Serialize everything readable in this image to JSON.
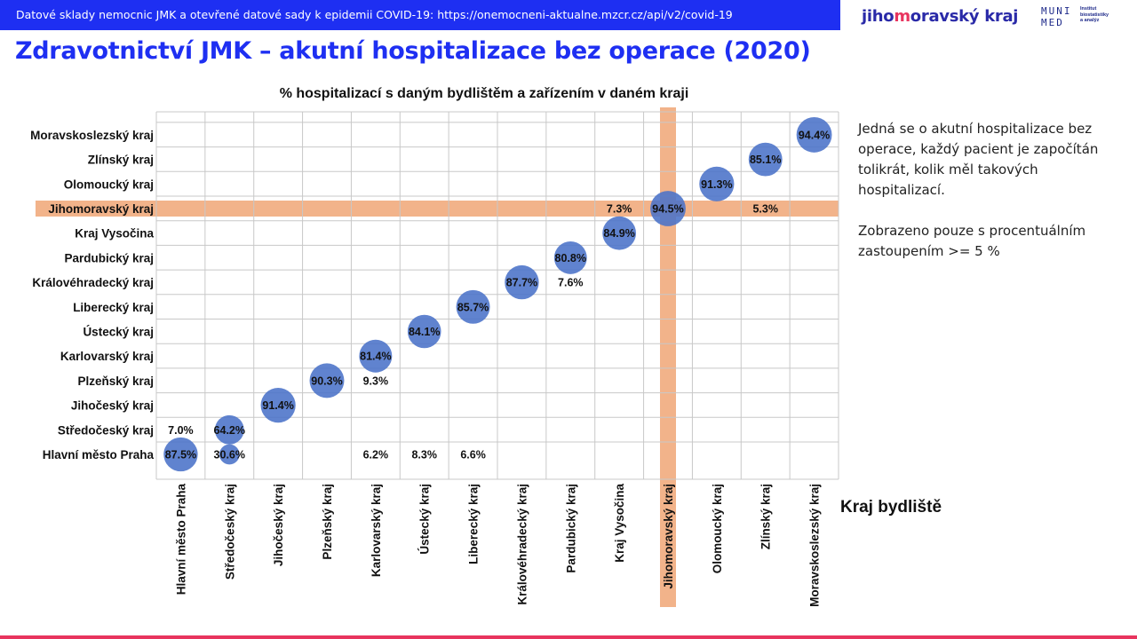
{
  "header": {
    "banner_text": "Datové sklady nemocnic JMK a otevřené datové sady k epidemii COVID-19: https://onemocneni-aktualne.mzcr.cz/api/v2/covid-19",
    "logo_jmk_pre": "jiho",
    "logo_jmk_hl": "m",
    "logo_jmk_post": "oravský kraj",
    "logo_muni_line1": "MUNI",
    "logo_muni_line2": "MED",
    "logo_inst_line1": "Institut",
    "logo_inst_line2": "biostatistiky",
    "logo_inst_line3": "a analýz"
  },
  "page_title": "Zdravotnictví JMK – akutní hospitalizace bez operace (2020)",
  "note": {
    "paragraph1": "Jedná se o akutní hospitalizace bez operace, každý pacient je započítán tolikrát, kolik měl takových hospitalizací.",
    "paragraph2": "Zobrazeno pouze s procentuálním zastoupením >= 5 %"
  },
  "colors": {
    "banner": "#1e2ff2",
    "title": "#1e2ff2",
    "bubble": "#4a72c8",
    "highlight": "#f2b38a",
    "accent_line": "#e8345e"
  },
  "chart_data": {
    "type": "scatter",
    "title": "% hospitalizací  s daným bydlištěm a zařízením v daném kraji",
    "xlabel": "Kraj bydliště",
    "ylabel": "",
    "x_categories": [
      "Hlavní město Praha",
      "Středočeský kraj",
      "Jihočeský kraj",
      "Plzeňský kraj",
      "Karlovarský kraj",
      "Ústecký kraj",
      "Liberecký kraj",
      "Královéhradecký kraj",
      "Pardubický kraj",
      "Kraj Vysočina",
      "Jihomoravský kraj",
      "Olomoucký kraj",
      "Zlínský kraj",
      "Moravskoslezský kraj"
    ],
    "y_categories": [
      "Hlavní město Praha",
      "Středočeský kraj",
      "Jihočeský kraj",
      "Plzeňský kraj",
      "Karlovarský kraj",
      "Ústecký kraj",
      "Liberecký kraj",
      "Královéhradecký kraj",
      "Pardubický kraj",
      "Kraj Vysočina",
      "Jihomoravský kraj",
      "Olomoucký kraj",
      "Zlínský kraj",
      "Moravskoslezský kraj"
    ],
    "highlight": "Jihomoravský kraj",
    "grid": true,
    "points": [
      {
        "x": "Hlavní město Praha",
        "y": "Hlavní město Praha",
        "value": 87.5,
        "label": "87.5%"
      },
      {
        "x": "Hlavní město Praha",
        "y": "Středočeský kraj",
        "value": 7.0,
        "label": "7.0%"
      },
      {
        "x": "Středočeský kraj",
        "y": "Hlavní město Praha",
        "value": 30.6,
        "label": "30.6%"
      },
      {
        "x": "Středočeský kraj",
        "y": "Středočeský kraj",
        "value": 64.2,
        "label": "64.2%"
      },
      {
        "x": "Jihočeský kraj",
        "y": "Jihočeský kraj",
        "value": 91.4,
        "label": "91.4%"
      },
      {
        "x": "Plzeňský kraj",
        "y": "Plzeňský kraj",
        "value": 90.3,
        "label": "90.3%"
      },
      {
        "x": "Karlovarský kraj",
        "y": "Hlavní město Praha",
        "value": 6.2,
        "label": "6.2%"
      },
      {
        "x": "Karlovarský kraj",
        "y": "Plzeňský kraj",
        "value": 9.3,
        "label": "9.3%"
      },
      {
        "x": "Karlovarský kraj",
        "y": "Karlovarský kraj",
        "value": 81.4,
        "label": "81.4%"
      },
      {
        "x": "Ústecký kraj",
        "y": "Hlavní město Praha",
        "value": 8.3,
        "label": "8.3%"
      },
      {
        "x": "Ústecký kraj",
        "y": "Ústecký kraj",
        "value": 84.1,
        "label": "84.1%"
      },
      {
        "x": "Liberecký kraj",
        "y": "Hlavní město Praha",
        "value": 6.6,
        "label": "6.6%"
      },
      {
        "x": "Liberecký kraj",
        "y": "Liberecký kraj",
        "value": 85.7,
        "label": "85.7%"
      },
      {
        "x": "Královéhradecký kraj",
        "y": "Královéhradecký kraj",
        "value": 87.7,
        "label": "87.7%"
      },
      {
        "x": "Pardubický kraj",
        "y": "Královéhradecký kraj",
        "value": 7.6,
        "label": "7.6%"
      },
      {
        "x": "Pardubický kraj",
        "y": "Pardubický kraj",
        "value": 80.8,
        "label": "80.8%"
      },
      {
        "x": "Kraj Vysočina",
        "y": "Kraj Vysočina",
        "value": 84.9,
        "label": "84.9%"
      },
      {
        "x": "Kraj Vysočina",
        "y": "Jihomoravský kraj",
        "value": 7.3,
        "label": "7.3%"
      },
      {
        "x": "Jihomoravský kraj",
        "y": "Jihomoravský kraj",
        "value": 94.5,
        "label": "94.5%"
      },
      {
        "x": "Olomoucký kraj",
        "y": "Olomoucký kraj",
        "value": 91.3,
        "label": "91.3%"
      },
      {
        "x": "Zlínský kraj",
        "y": "Jihomoravský kraj",
        "value": 5.3,
        "label": "5.3%"
      },
      {
        "x": "Zlínský kraj",
        "y": "Zlínský kraj",
        "value": 85.1,
        "label": "85.1%"
      },
      {
        "x": "Moravskoslezský kraj",
        "y": "Moravskoslezský kraj",
        "value": 94.4,
        "label": "94.4%"
      }
    ]
  }
}
